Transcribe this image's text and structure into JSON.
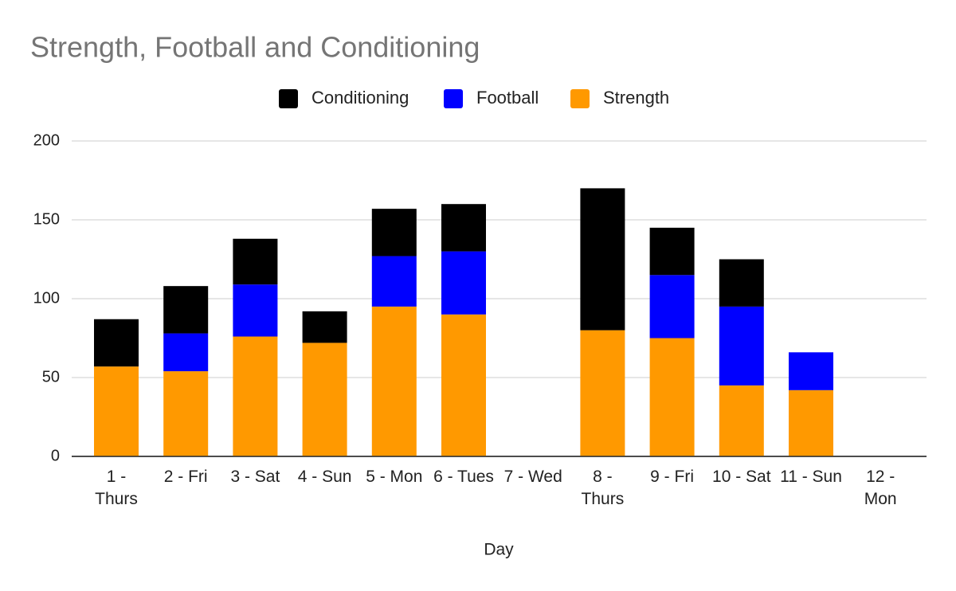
{
  "chart_data": {
    "type": "stacked_bar",
    "title": "Strength, Football and Conditioning",
    "x_label": "Day",
    "categories": [
      "1 - Thurs",
      "2 - Fri",
      "3 - Sat",
      "4 - Sun",
      "5 - Mon",
      "6 - Tues",
      "7 - Wed",
      "8 - Thurs",
      "9 - Fri",
      "10 - Sat",
      "11 - Sun",
      "12 - Mon"
    ],
    "series": [
      {
        "name": "Conditioning",
        "color": "#000000",
        "values": [
          30,
          30,
          29,
          20,
          30,
          30,
          0,
          90,
          30,
          30,
          0,
          0
        ]
      },
      {
        "name": "Football",
        "color": "#0000ff",
        "values": [
          0,
          24,
          33,
          0,
          32,
          40,
          0,
          0,
          40,
          50,
          24,
          0
        ]
      },
      {
        "name": "Strength",
        "color": "#ff9900",
        "values": [
          57,
          54,
          76,
          72,
          95,
          90,
          0,
          80,
          75,
          45,
          42,
          0
        ]
      }
    ],
    "ylim": [
      0,
      200
    ],
    "yticks": [
      0,
      50,
      100,
      150,
      200
    ],
    "grid": true,
    "legend": "top"
  }
}
